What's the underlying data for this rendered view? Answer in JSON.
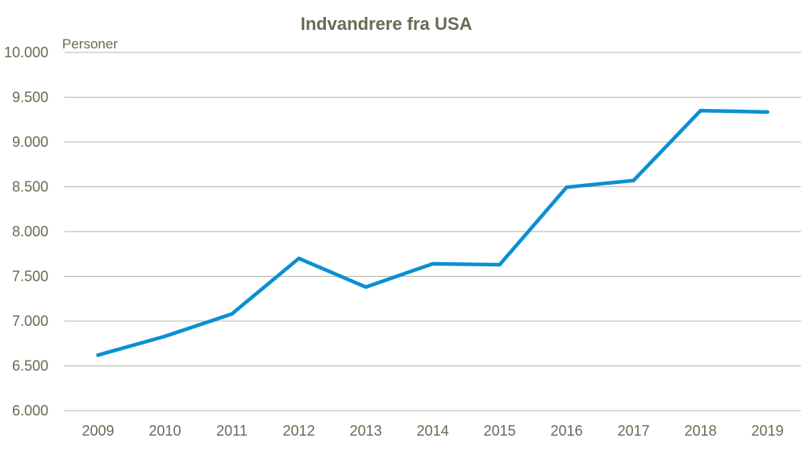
{
  "chart_data": {
    "type": "line",
    "title": "Indvandrere fra USA",
    "ylabel": "Personer",
    "xlabel": "",
    "categories": [
      "2009",
      "2010",
      "2011",
      "2012",
      "2013",
      "2014",
      "2015",
      "2016",
      "2017",
      "2018",
      "2019"
    ],
    "series": [
      {
        "name": "Indvandrere fra USA",
        "values": [
          6620,
          6830,
          7080,
          7700,
          7380,
          7640,
          7630,
          8495,
          8570,
          9350,
          9335
        ],
        "color": "#0a8fd4"
      }
    ],
    "ylim": [
      6000,
      10000
    ],
    "yticks": [
      6000,
      6500,
      7000,
      7500,
      8000,
      8500,
      9000,
      9500,
      10000
    ],
    "ytick_labels": [
      "6.000",
      "6.500",
      "7.000",
      "7.500",
      "8.000",
      "8.500",
      "9.000",
      "9.500",
      "10.000"
    ],
    "grid": true,
    "legend": "none"
  }
}
